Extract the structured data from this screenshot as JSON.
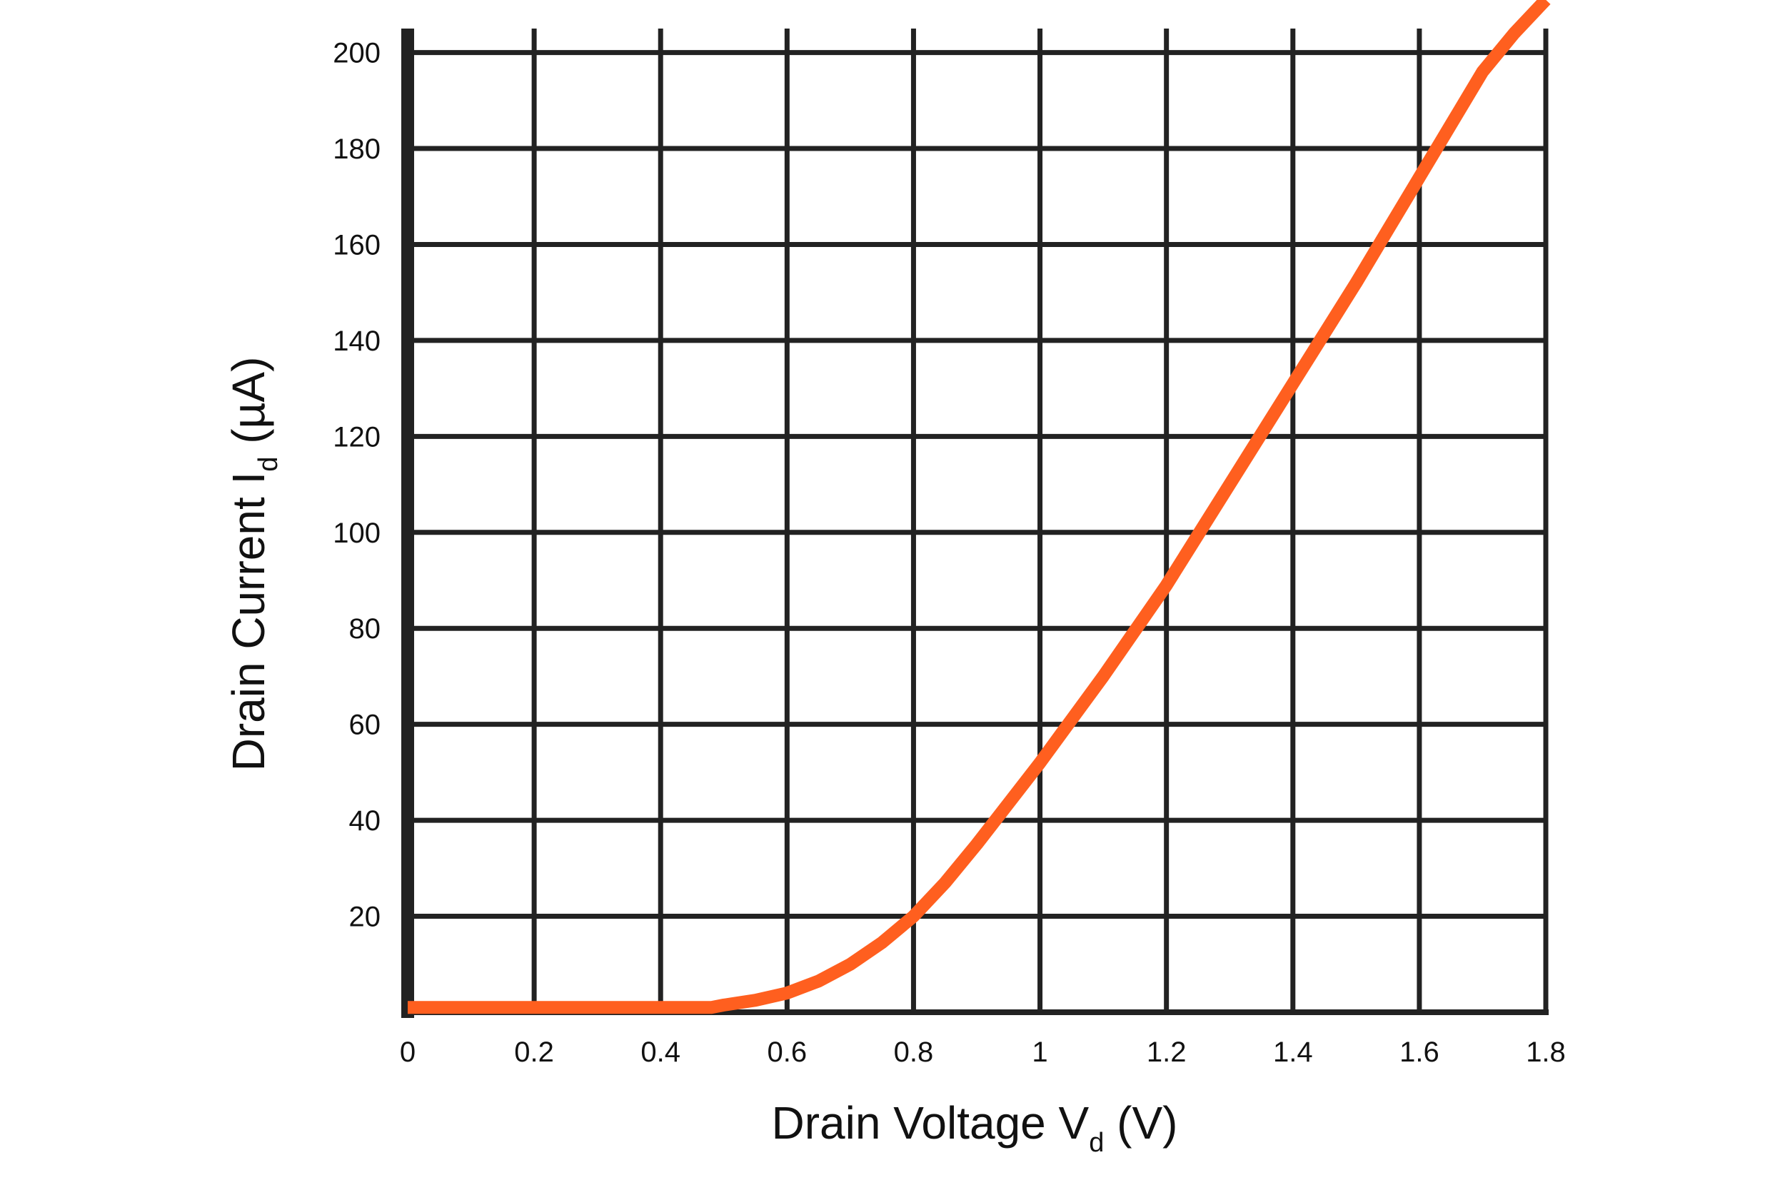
{
  "chart_data": {
    "type": "line",
    "title": "",
    "xlabel_main": "Drain Voltage V",
    "xlabel_sub": "d",
    "xlabel_unit": " (V)",
    "ylabel_main": "Drain Current I",
    "ylabel_sub": "d",
    "ylabel_unit": " (µA)",
    "xlim": [
      0,
      1.8
    ],
    "ylim": [
      0,
      205
    ],
    "x_ticks": [
      0,
      0.2,
      0.4,
      0.6,
      0.8,
      1,
      1.2,
      1.4,
      1.6,
      1.8
    ],
    "x_tick_labels": [
      "0",
      "0.2",
      "0.4",
      "0.6",
      "0.8",
      "1",
      "1.2",
      "1.4",
      "1.6",
      "1.8"
    ],
    "y_ticks": [
      20,
      40,
      60,
      80,
      100,
      120,
      140,
      160,
      180,
      200
    ],
    "y_tick_labels": [
      "20",
      "40",
      "60",
      "80",
      "100",
      "120",
      "140",
      "160",
      "180",
      "200"
    ],
    "grid": true,
    "colors": {
      "line": "#ff5f1f",
      "grid": "#222222",
      "axis": "#222222"
    },
    "series": [
      {
        "x": [
          0,
          0.1,
          0.2,
          0.3,
          0.4,
          0.48,
          0.5,
          0.55,
          0.6,
          0.65,
          0.7,
          0.75,
          0.8,
          0.85,
          0.9,
          0.95,
          1.0,
          1.05,
          1.1,
          1.15,
          1.2,
          1.25,
          1.3,
          1.35,
          1.4,
          1.45,
          1.5,
          1.55,
          1.6,
          1.65,
          1.7,
          1.75,
          1.8
        ],
        "y": [
          1,
          1,
          1,
          1,
          1,
          1,
          1.5,
          2.5,
          4,
          6.5,
          10,
          14.5,
          20,
          27,
          35,
          43.5,
          52,
          61,
          70,
          79.5,
          89,
          99.5,
          110,
          120.5,
          131,
          141.5,
          152,
          163,
          174,
          185,
          196,
          204,
          211
        ]
      }
    ]
  }
}
